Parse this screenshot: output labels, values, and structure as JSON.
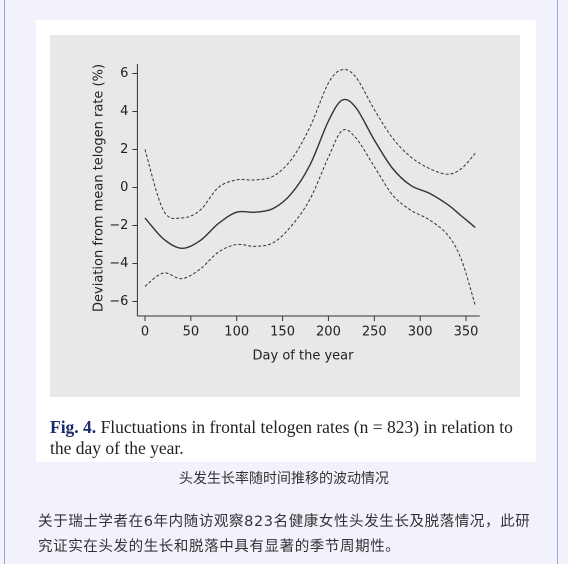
{
  "chart_data": {
    "type": "line",
    "x_label": "Day of the year",
    "y_label": "Deviation from mean telogen rate (%)",
    "x": [
      0,
      20,
      40,
      60,
      80,
      100,
      120,
      140,
      160,
      180,
      200,
      215,
      230,
      250,
      270,
      290,
      310,
      330,
      345,
      360
    ],
    "series": [
      {
        "color": "#333333",
        "dashed": false,
        "values": [
          -1.6,
          -2.7,
          -3.2,
          -2.8,
          -1.9,
          -1.3,
          -1.3,
          -1.1,
          -0.3,
          1.2,
          3.5,
          4.6,
          4.2,
          2.5,
          1.0,
          0.1,
          -0.3,
          -0.9,
          -1.5,
          -2.1
        ]
      },
      {
        "color": "#333333",
        "dashed": true,
        "values": [
          2.0,
          -1.2,
          -1.6,
          -1.2,
          0.0,
          0.4,
          0.4,
          0.6,
          1.5,
          3.2,
          5.5,
          6.2,
          5.8,
          4.1,
          2.6,
          1.6,
          1.0,
          0.7,
          1.0,
          1.8
        ]
      },
      {
        "color": "#333333",
        "dashed": true,
        "values": [
          -5.2,
          -4.5,
          -4.8,
          -4.3,
          -3.4,
          -3.0,
          -3.1,
          -2.9,
          -2.0,
          -0.6,
          1.6,
          3.0,
          2.6,
          1.1,
          -0.4,
          -1.2,
          -1.7,
          -2.5,
          -3.8,
          -6.2
        ]
      }
    ],
    "xlim": [
      -5,
      365
    ],
    "ylim": [
      -6.5,
      6.5
    ],
    "xticks": [
      0,
      50,
      100,
      150,
      200,
      250,
      300,
      350
    ],
    "yticks": [
      {
        "value": -6,
        "label": "−6"
      },
      {
        "value": -4,
        "label": "−4"
      },
      {
        "value": -2,
        "label": "−2"
      },
      0,
      2,
      4,
      6
    ],
    "grid": false
  },
  "fig_caption": {
    "label": "Fig. 4.",
    "text": "Fluctuations in frontal telogen rates (n = 823) in relation to the day of the year."
  },
  "caption": "头发生长率随时间推移的波动情况",
  "paragraph": "关于瑞士学者在6年内随访观察823名健康女性头发生长及脱落情况，此研究证实在头发的生长和脱落中具有显著的季节周期性。"
}
